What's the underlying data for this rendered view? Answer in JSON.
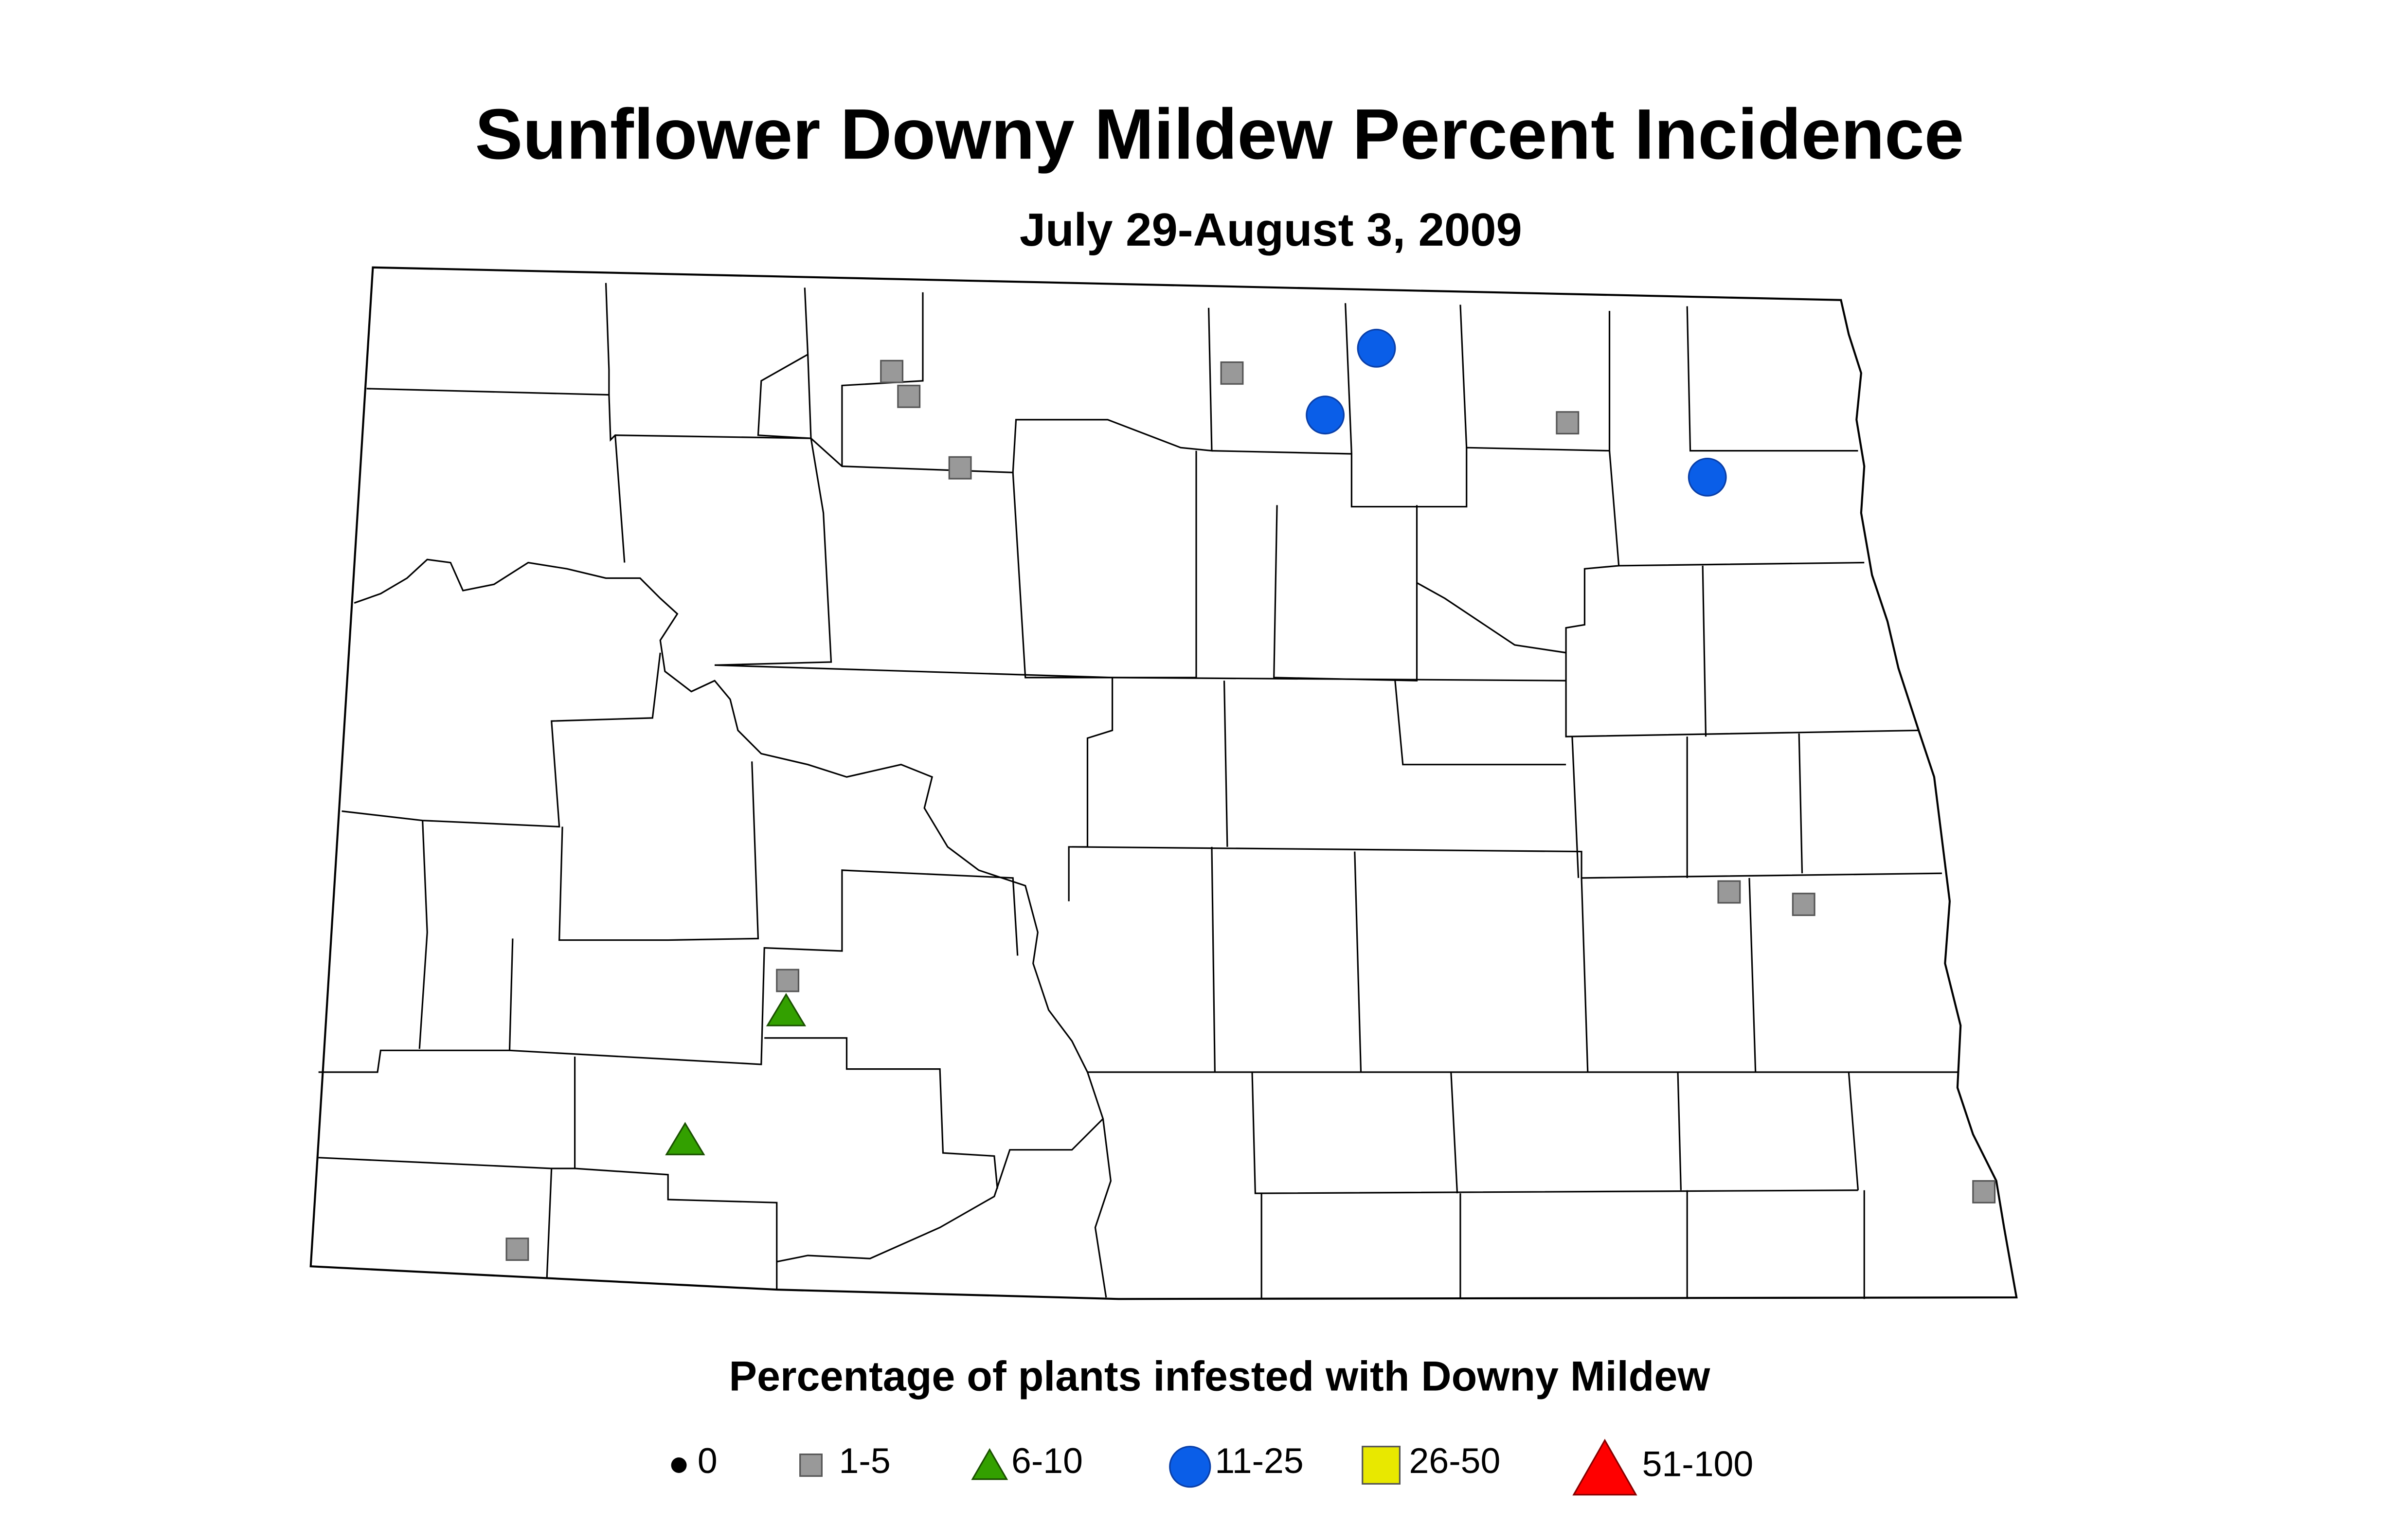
{
  "header": {
    "title": "Sunflower Downy Mildew Percent Incidence",
    "subtitle": "July 29-August 3, 2009"
  },
  "legend": {
    "title": "Percentage of plants infested with Downy Mildew",
    "items": [
      "0",
      "1-5",
      "6-10",
      "11-25",
      "26-50",
      "51-100"
    ]
  }
}
